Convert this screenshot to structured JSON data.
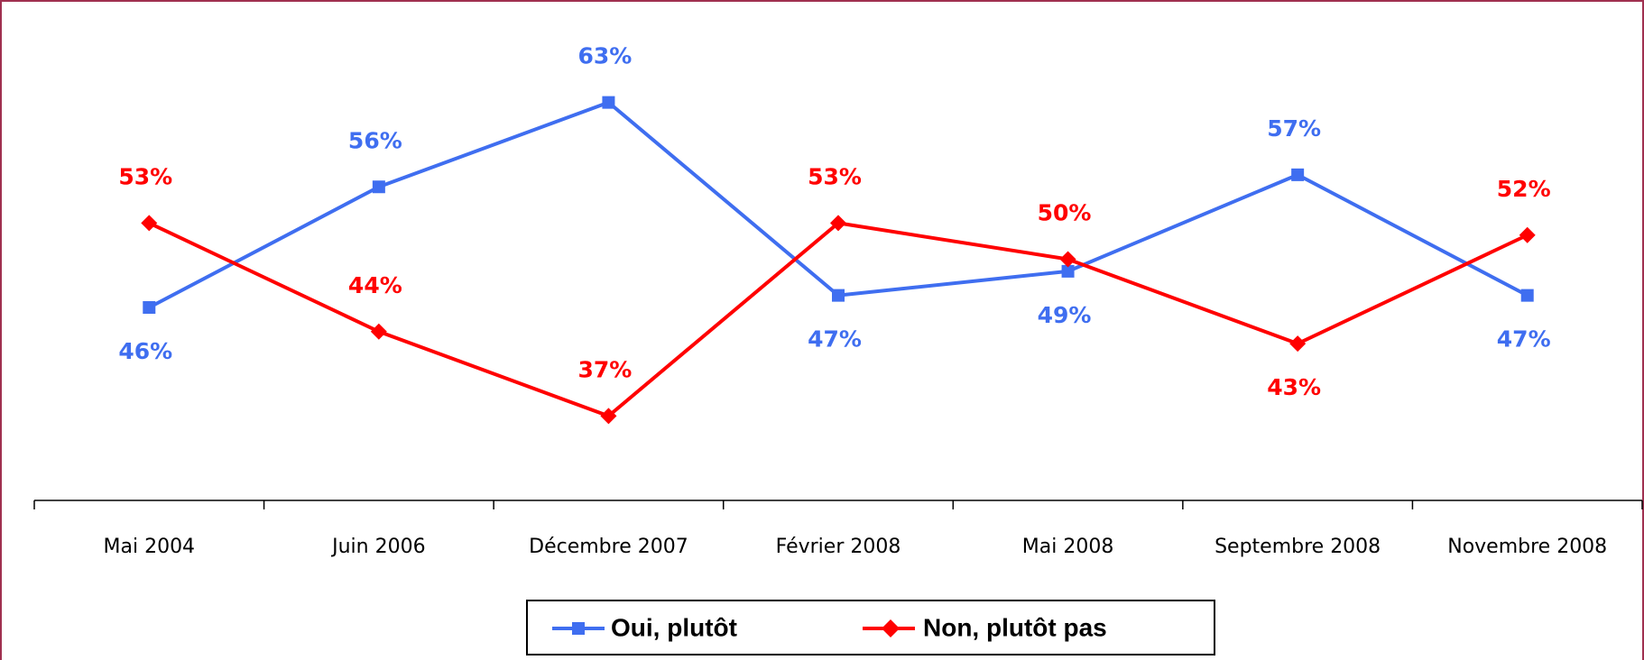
{
  "chart_data": {
    "type": "line",
    "categories": [
      "Mai 2004",
      "Juin 2006",
      "Décembre 2007",
      "Février 2008",
      "Mai 2008",
      "Septembre 2008",
      "Novembre 2008"
    ],
    "series": [
      {
        "name": "Oui, plutôt",
        "color": "#3f6ef0",
        "marker": "square",
        "values": [
          46,
          56,
          63,
          47,
          49,
          57,
          47
        ],
        "value_labels": [
          "46%",
          "56%",
          "63%",
          "47%",
          "49%",
          "57%",
          "47%"
        ]
      },
      {
        "name": "Non, plutôt pas",
        "color": "#ff0000",
        "marker": "diamond",
        "values": [
          53,
          44,
          37,
          53,
          50,
          43,
          52
        ],
        "value_labels": [
          "53%",
          "44%",
          "37%",
          "53%",
          "50%",
          "43%",
          "52%"
        ]
      }
    ],
    "ylim": [
      30,
      70
    ],
    "legend": "bottom"
  }
}
